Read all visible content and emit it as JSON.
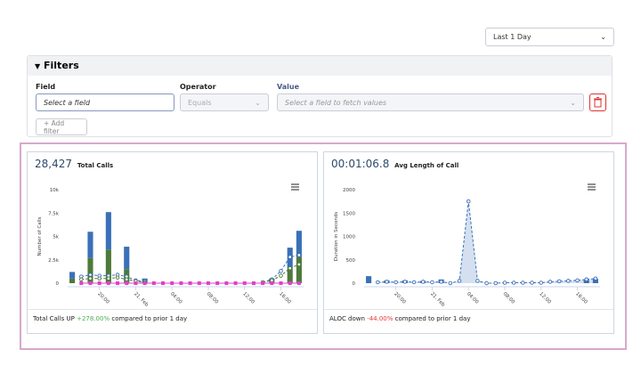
{
  "time_range": "Last 1 Day",
  "filters": {
    "title": "Filters",
    "field_label": "Field",
    "field_placeholder": "Select a field",
    "operator_label": "Operator",
    "operator_value": "Equals",
    "value_label": "Value",
    "value_placeholder": "Select a field to fetch values",
    "add_button": "+ Add filter"
  },
  "charts": [
    {
      "type": "bar",
      "headline": "28,427",
      "headline_label": "Total Calls",
      "ylabel": "Number of Calls",
      "categories": [
        null,
        null,
        null,
        "20:00",
        null,
        null,
        null,
        "21. Feb",
        null,
        null,
        null,
        "04:00",
        null,
        null,
        null,
        "08:00",
        null,
        null,
        null,
        "12:00",
        null,
        null,
        null,
        "16:00",
        null,
        null
      ],
      "ylim": [
        0,
        10000
      ],
      "yticks": [
        0,
        {
          "value": 2500,
          "label": "2.5k"
        },
        {
          "value": 5000,
          "label": "5k"
        },
        {
          "value": 7500,
          "label": "7.5k"
        },
        {
          "value": 10000,
          "label": "10k"
        }
      ],
      "grid": false,
      "series": [
        {
          "type": "bar",
          "color": "#4d7a3a",
          "values": [
            500,
            null,
            2700,
            null,
            3600,
            null,
            1500,
            null,
            200,
            null,
            null,
            null,
            null,
            null,
            null,
            null,
            null,
            null,
            null,
            null,
            null,
            null,
            200,
            null,
            1600,
            2800
          ]
        },
        {
          "type": "bar",
          "color": "#3a70b8",
          "values": [
            700,
            null,
            2800,
            null,
            4000,
            null,
            2400,
            null,
            300,
            null,
            null,
            null,
            null,
            null,
            null,
            null,
            null,
            null,
            null,
            null,
            null,
            null,
            300,
            null,
            2200,
            2800
          ]
        },
        {
          "type": "line",
          "color": "#3a70b8",
          "dashed": true,
          "marker": "circle",
          "values": [
            null,
            700,
            900,
            800,
            800,
            900,
            700,
            300,
            200,
            null,
            null,
            null,
            null,
            null,
            null,
            null,
            null,
            null,
            null,
            null,
            null,
            100,
            400,
            1300,
            2800,
            3000
          ]
        },
        {
          "type": "line",
          "color": "#4d7a3a",
          "dashed": true,
          "marker": "circle",
          "values": [
            null,
            400,
            500,
            500,
            500,
            600,
            400,
            200,
            100,
            null,
            null,
            null,
            null,
            null,
            null,
            null,
            null,
            null,
            null,
            null,
            null,
            100,
            300,
            800,
            1600,
            2000
          ]
        },
        {
          "type": "line",
          "color": "#e040c8",
          "dashed": false,
          "marker": "square",
          "values": [
            null,
            0,
            0,
            0,
            0,
            0,
            0,
            0,
            0,
            0,
            0,
            0,
            0,
            0,
            0,
            0,
            0,
            0,
            0,
            0,
            0,
            0,
            0,
            0,
            0,
            0
          ]
        }
      ],
      "footer": {
        "prefix": "Total Calls UP",
        "change": "+278.00%",
        "change_color": "#4caf50",
        "suffix": "compared to prior 1 day"
      }
    },
    {
      "type": "line",
      "headline": "00:01:06.8",
      "headline_label": "Avg Length of Call",
      "ylabel": "Duration in Seconds",
      "categories": [
        null,
        null,
        null,
        "20:00",
        null,
        null,
        null,
        "21. Feb",
        null,
        null,
        null,
        "04:00",
        null,
        null,
        null,
        "08:00",
        null,
        null,
        null,
        "12:00",
        null,
        null,
        null,
        "16:00",
        null,
        null
      ],
      "ylim": [
        0,
        2000
      ],
      "yticks": [
        0,
        500,
        1000,
        1500,
        2000
      ],
      "grid": false,
      "series": [
        {
          "type": "bar",
          "color": "#3a70b8",
          "values": [
            150,
            null,
            60,
            null,
            60,
            null,
            50,
            null,
            80,
            null,
            null,
            null,
            null,
            null,
            null,
            null,
            null,
            null,
            null,
            null,
            null,
            null,
            null,
            null,
            70,
            90
          ]
        },
        {
          "type": "line",
          "color": "#3a70b8",
          "dashed": true,
          "marker": "circle",
          "area": true,
          "values": [
            null,
            20,
            30,
            20,
            30,
            20,
            30,
            20,
            30,
            0,
            50,
            1750,
            50,
            0,
            0,
            10,
            10,
            10,
            10,
            10,
            30,
            40,
            50,
            60,
            80,
            100
          ]
        }
      ],
      "footer": {
        "prefix": "ALOC down",
        "change": "-44.00%",
        "change_color": "#e53935",
        "suffix": "compared to prior 1 day"
      }
    }
  ]
}
